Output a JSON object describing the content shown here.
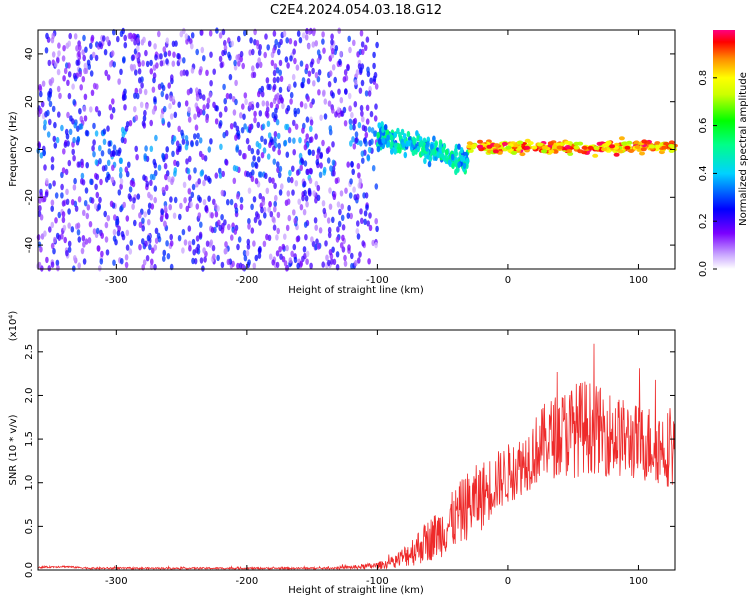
{
  "title": "C2E4.2024.054.03.18.G12",
  "chart_data": [
    {
      "type": "heatmap",
      "xlabel": "Height of straight line (km)",
      "ylabel": "Frequency (Hz)",
      "xlim": [
        -360,
        128
      ],
      "ylim": [
        -50,
        50
      ],
      "xticks": [
        -300,
        -200,
        -100,
        0,
        100
      ],
      "xtick_labels": [
        "-300",
        "-200",
        "-100",
        "0",
        "100"
      ],
      "yticks": [
        -40,
        -20,
        0,
        20,
        40
      ],
      "ytick_labels": [
        "-40",
        "-20",
        "0",
        "20",
        "40"
      ],
      "colorbar": {
        "label": "Normalized spectral amplitude",
        "range": [
          0,
          1
        ],
        "ticks": [
          0.0,
          0.2,
          0.4,
          0.6,
          0.8
        ],
        "tick_labels": [
          "0.0",
          "0.2",
          "0.4",
          "0.6",
          "0.8"
        ],
        "colormap": "rainbow (white-violet-blue-cyan-green-yellow-red-magenta)"
      },
      "regions": [
        {
          "x_range": [
            -360,
            -100
          ],
          "freq_center": 0,
          "freq_spread": 50,
          "amplitude": [
            0.05,
            0.3
          ],
          "description": "broadband violet noise"
        },
        {
          "x_range": [
            -100,
            -30
          ],
          "freq_center_start": 6,
          "freq_center_end": -5,
          "amplitude": [
            0.3,
            0.55
          ],
          "description": "descending cyan/green streak"
        },
        {
          "x_range": [
            -30,
            128
          ],
          "freq_center": 1,
          "freq_spread": 2,
          "amplitude": [
            0.7,
            1.0
          ],
          "description": "narrow red/green line near 0 Hz"
        }
      ],
      "grid": false
    },
    {
      "type": "line",
      "xlabel": "Height of straight line (km)",
      "ylabel": "SNR (10 * v/v)",
      "y_multiplier": "(x10⁴)",
      "xlim": [
        -360,
        128
      ],
      "ylim": [
        0,
        2.75
      ],
      "xticks": [
        -300,
        -200,
        -100,
        0,
        100
      ],
      "xtick_labels": [
        "-300",
        "-200",
        "-100",
        "0",
        "100"
      ],
      "yticks": [
        0.0,
        0.5,
        1.0,
        1.5,
        2.0,
        2.5
      ],
      "ytick_labels": [
        "0.0",
        "0.5",
        "1.0",
        "1.5",
        "2.0",
        "2.5"
      ],
      "series": [
        {
          "color": "#ee2a2a",
          "x": [
            -360,
            -340,
            -320,
            -300,
            -280,
            -260,
            -240,
            -220,
            -200,
            -180,
            -160,
            -140,
            -120,
            -100,
            -90,
            -80,
            -70,
            -60,
            -50,
            -40,
            -30,
            -20,
            -10,
            0,
            10,
            20,
            30,
            40,
            50,
            60,
            70,
            80,
            90,
            100,
            110,
            120,
            128
          ],
          "y": [
            0.03,
            0.04,
            0.02,
            0.02,
            0.02,
            0.02,
            0.02,
            0.02,
            0.02,
            0.02,
            0.02,
            0.02,
            0.03,
            0.05,
            0.08,
            0.15,
            0.25,
            0.35,
            0.45,
            0.6,
            0.75,
            0.85,
            1.0,
            1.1,
            1.2,
            1.35,
            1.5,
            1.55,
            1.6,
            1.65,
            1.6,
            1.55,
            1.5,
            1.45,
            1.45,
            1.4,
            1.4
          ],
          "noise_amplitude": [
            0.01,
            0.01,
            0.01,
            0.01,
            0.01,
            0.01,
            0.01,
            0.01,
            0.01,
            0.01,
            0.01,
            0.01,
            0.02,
            0.04,
            0.06,
            0.12,
            0.2,
            0.25,
            0.3,
            0.35,
            0.4,
            0.4,
            0.35,
            0.35,
            0.35,
            0.4,
            0.45,
            0.5,
            0.55,
            0.55,
            0.5,
            0.5,
            0.45,
            0.45,
            0.45,
            0.45,
            0.45
          ]
        }
      ],
      "grid": false
    }
  ]
}
